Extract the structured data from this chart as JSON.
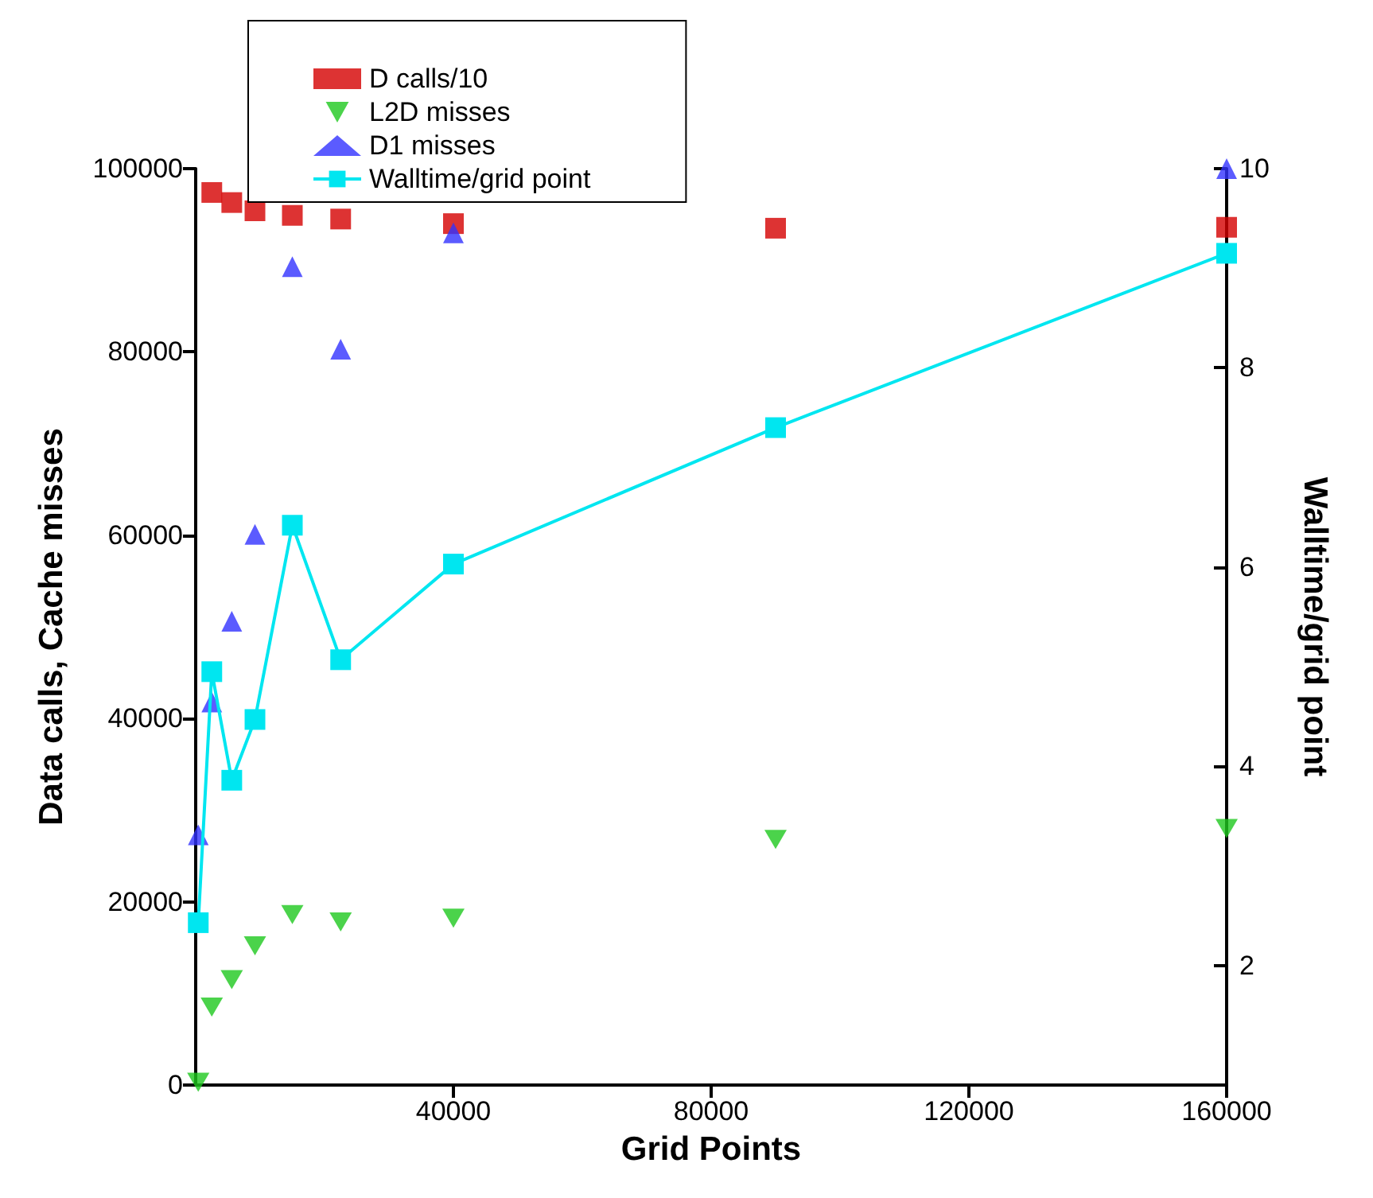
{
  "chart_data": {
    "type": "scatter",
    "xlabel": "Grid Points",
    "ylabel": "Data calls, Cache misses",
    "y2label": "Walltime/grid point",
    "x": [
      400,
      2500,
      5600,
      9200,
      15000,
      22500,
      40000,
      90000,
      160000
    ],
    "series": [
      {
        "name": "D calls/10",
        "color": "#d40000",
        "marker": "square",
        "values": [
          null,
          97400,
          96300,
          95400,
          94900,
          94500,
          94000,
          93500,
          93600
        ]
      },
      {
        "name": "L2D misses",
        "color": "#1ec81e",
        "marker": "triangle-down",
        "values": [
          300,
          8500,
          11500,
          15200,
          18600,
          17800,
          18200,
          26800,
          28000
        ]
      },
      {
        "name": "D1 misses",
        "color": "#3232ff",
        "marker": "triangle",
        "values": [
          27300,
          41800,
          50600,
          60100,
          89300,
          80300,
          93000,
          null,
          100000
        ]
      },
      {
        "name": "Walltime/grid point",
        "type": "line",
        "axis": "y2",
        "color": "#00e6f0",
        "marker": "square",
        "values": [
          2.43,
          4.95,
          3.86,
          4.47,
          6.42,
          5.07,
          6.03,
          7.4,
          9.15
        ]
      }
    ],
    "xlim": [
      0,
      160000
    ],
    "xticks": [
      40000,
      80000,
      120000,
      160000
    ],
    "ylim": [
      0,
      100000
    ],
    "yticks": [
      0,
      20000,
      40000,
      60000,
      80000,
      100000
    ],
    "y2lim": [
      0.8,
      10
    ],
    "y2ticks": [
      2,
      4,
      6,
      8,
      10
    ],
    "grid": false,
    "legend": "top left"
  }
}
